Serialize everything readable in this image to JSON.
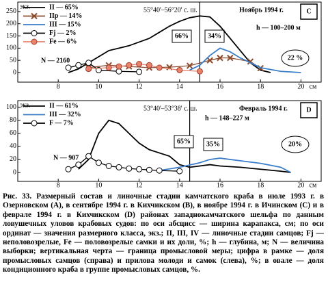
{
  "chart_data": [
    {
      "type": "line",
      "panel": "C",
      "xlabel": "см",
      "ylabel": "экз.",
      "xlim": [
        6,
        21
      ],
      "xticks": [
        8,
        10,
        12,
        14,
        16,
        18,
        20
      ],
      "ylim": [
        0,
        275
      ],
      "yticks": [
        0,
        50,
        100,
        150,
        200,
        250
      ],
      "vline": 15,
      "annotations": {
        "coords": "55°40'–56°20' с. ш.",
        "month": "Ноябрь 1994 г.",
        "depth": "h — 100–200 м",
        "n": "N — 2160",
        "left_box": "66%",
        "right_box": "34%",
        "oval": "22 %"
      },
      "series": [
        {
          "name": "II — 65%",
          "color": "#000000",
          "marker": "none",
          "x": [
            8.5,
            9,
            9.5,
            10,
            10.5,
            11,
            11.5,
            12,
            12.5,
            13,
            13.5,
            14,
            14.5,
            15,
            15.5,
            16,
            16.5,
            17,
            17.5,
            18,
            18.5
          ],
          "values": [
            0,
            15,
            40,
            65,
            90,
            100,
            110,
            125,
            140,
            165,
            190,
            210,
            225,
            232,
            228,
            190,
            140,
            90,
            40,
            10,
            0
          ]
        },
        {
          "name": "IIр — 14%",
          "color": "#8b4a2b",
          "marker": "x",
          "x": [
            9.5,
            10.5,
            11.5,
            12.5,
            13.5,
            14.5,
            15.5,
            16,
            16.5,
            17.5,
            18
          ],
          "values": [
            20,
            30,
            25,
            20,
            22,
            28,
            50,
            60,
            60,
            45,
            18
          ]
        },
        {
          "name": "III — 15%",
          "color": "#3a7dc9",
          "marker": "none",
          "x": [
            14.5,
            15,
            15.5,
            16,
            16.5,
            17,
            17.5,
            18,
            19,
            20
          ],
          "values": [
            10,
            30,
            70,
            100,
            85,
            60,
            40,
            20,
            5,
            0
          ]
        },
        {
          "name": "Fj — 2%",
          "color": "#000000",
          "marker": "open",
          "x": [
            8.5,
            9,
            9.5,
            10,
            11,
            12
          ],
          "values": [
            20,
            30,
            40,
            10,
            5,
            3
          ]
        },
        {
          "name": "Fe — 6%",
          "color": "#e8826a",
          "marker": "filled",
          "x": [
            9.5,
            10.5,
            11,
            11.5,
            12,
            12.5,
            13,
            14,
            15
          ],
          "values": [
            15,
            20,
            25,
            30,
            35,
            30,
            20,
            10,
            5
          ]
        }
      ]
    },
    {
      "type": "line",
      "panel": "D",
      "xlabel": "см",
      "ylabel": "экз.",
      "xlim": [
        6,
        21
      ],
      "xticks": [
        8,
        10,
        12,
        14,
        16,
        18,
        20
      ],
      "ylim": [
        0,
        105
      ],
      "yticks": [
        0,
        20,
        40,
        60,
        80,
        100
      ],
      "vline": 14.5,
      "annotations": {
        "coords": "53°40'–53°38' с. ш.",
        "month": "Февраль 1994 г.",
        "depth": "h — 148–227 м",
        "n": "N — 907",
        "left_box": "65%",
        "right_box": "35%",
        "oval": "20%"
      },
      "series": [
        {
          "name": "II — 61%",
          "color": "#000000",
          "marker": "none",
          "x": [
            9,
            9.5,
            10,
            10.5,
            11,
            11.5,
            12,
            12.5,
            13,
            13.5,
            14,
            14.5,
            15,
            15.5,
            16,
            17,
            18,
            19,
            19.5
          ],
          "values": [
            5,
            20,
            60,
            80,
            75,
            60,
            45,
            35,
            30,
            25,
            12,
            8,
            10,
            12,
            10,
            8,
            5,
            2,
            0
          ]
        },
        {
          "name": "III — 32%",
          "color": "#3a7dc9",
          "marker": "none",
          "x": [
            13,
            14,
            15,
            15.5,
            16,
            17,
            18,
            19,
            19.5
          ],
          "values": [
            3,
            8,
            15,
            20,
            22,
            18,
            14,
            8,
            0
          ]
        },
        {
          "name": "F — 7%",
          "color": "#000000",
          "marker": "open",
          "x": [
            8.5,
            9,
            9.5,
            10,
            10.5,
            11,
            11.5,
            12,
            12.5,
            13,
            14
          ],
          "values": [
            5,
            12,
            25,
            15,
            10,
            8,
            6,
            5,
            4,
            3,
            2
          ]
        }
      ]
    }
  ],
  "caption": "Рис. 33. Размерный состав и линочные стадии камчатского краба в июле 1993 г. в Озерновском (А), в сентябре 1994 г. в Кихчикском (В), в ноябре 1994 г. в Ичинском (С) и в феврале 1994 г. в Кихчикском (D) районах западнокамчатского шельфа по данным ловушечных уловов крабовых судов: по оси абсцисс — ширина карапакса, см; по оси ординат — значения размерного класса, экз.; II, III, IV — линочные стадии самцов; Fj — неполовозрелые, Fe — половозрелые самки и их доли, %; h — глубина, м; N — величина выборки; вертикальная черта — граница промысловой меры; цифра в рамке — доля промысловых самцов (справа) и прилова молоди и самок (слева), %; в овале — доля кондиционного краба в группе промысловых самцов, %."
}
